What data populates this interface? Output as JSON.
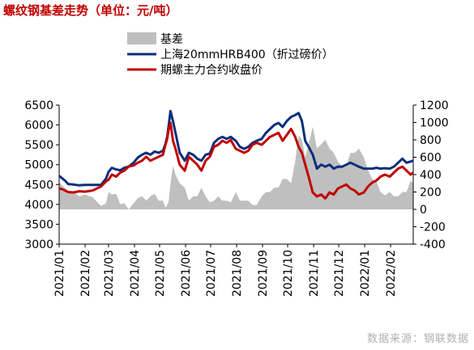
{
  "chart_data": {
    "type": "line",
    "title": "螺纹钢基差走势（单位：元/吨）",
    "x_tick_labels": [
      "2021/01",
      "2021/02",
      "2021/03",
      "2021/04",
      "2021/05",
      "2021/06",
      "2021/07",
      "2021/08",
      "2021/09",
      "2021/10",
      "2021/11",
      "2021/12",
      "2022/01",
      "2022/02"
    ],
    "left_axis": {
      "ylim": [
        3000,
        6500
      ],
      "ticks": [
        "3000",
        "3500",
        "4000",
        "4500",
        "5000",
        "5500",
        "6000",
        "6500"
      ]
    },
    "right_axis": {
      "ylim": [
        -400,
        1200
      ],
      "ticks": [
        "-400",
        "-200",
        "0",
        "200",
        "400",
        "600",
        "800",
        "1000",
        "1200"
      ]
    },
    "x_range": [
      "2021-01-01",
      "2022-02-28"
    ],
    "legend": [
      {
        "name": "基差",
        "color": "#bfbfbf",
        "kind": "area",
        "axis": "right"
      },
      {
        "name": "上海20mmHRB400（折过磅价）",
        "color": "#0b2e7a",
        "kind": "line",
        "axis": "left"
      },
      {
        "name": "期螺主力合约收盘价",
        "color": "#c00000",
        "kind": "line",
        "axis": "left"
      }
    ],
    "series": [
      {
        "name": "上海20mmHRB400（折过磅价）",
        "x": [
          "2021-01-01",
          "2021-01-05",
          "2021-01-08",
          "2021-01-12",
          "2021-01-18",
          "2021-01-25",
          "2021-02-01",
          "2021-02-10",
          "2021-02-20",
          "2021-02-26",
          "2021-03-01",
          "2021-03-05",
          "2021-03-10",
          "2021-03-15",
          "2021-03-20",
          "2021-03-25",
          "2021-03-31",
          "2021-04-05",
          "2021-04-10",
          "2021-04-15",
          "2021-04-20",
          "2021-04-25",
          "2021-04-30",
          "2021-05-05",
          "2021-05-08",
          "2021-05-10",
          "2021-05-12",
          "2021-05-14",
          "2021-05-17",
          "2021-05-20",
          "2021-05-25",
          "2021-05-31",
          "2021-06-05",
          "2021-06-10",
          "2021-06-15",
          "2021-06-20",
          "2021-06-25",
          "2021-06-30",
          "2021-07-05",
          "2021-07-10",
          "2021-07-15",
          "2021-07-20",
          "2021-07-25",
          "2021-07-31",
          "2021-08-05",
          "2021-08-10",
          "2021-08-15",
          "2021-08-20",
          "2021-08-25",
          "2021-08-31",
          "2021-09-05",
          "2021-09-10",
          "2021-09-15",
          "2021-09-20",
          "2021-09-25",
          "2021-09-30",
          "2021-10-05",
          "2021-10-10",
          "2021-10-14",
          "2021-10-18",
          "2021-10-22",
          "2021-10-26",
          "2021-10-31",
          "2021-11-05",
          "2021-11-10",
          "2021-11-15",
          "2021-11-20",
          "2021-11-25",
          "2021-11-30",
          "2021-12-05",
          "2021-12-10",
          "2021-12-15",
          "2021-12-20",
          "2021-12-25",
          "2021-12-31",
          "2022-01-05",
          "2022-01-10",
          "2022-01-15",
          "2022-01-20",
          "2022-01-25",
          "2022-01-31",
          "2022-02-05",
          "2022-02-10",
          "2022-02-15",
          "2022-02-20",
          "2022-02-25",
          "2022-02-28"
        ],
        "values": [
          4720,
          4650,
          4600,
          4510,
          4500,
          4480,
          4490,
          4490,
          4490,
          4650,
          4820,
          4920,
          4880,
          4860,
          4920,
          4950,
          5050,
          5180,
          5250,
          5300,
          5250,
          5330,
          5300,
          5350,
          5520,
          5700,
          6000,
          6350,
          6100,
          5800,
          5300,
          5100,
          5300,
          5250,
          5150,
          5100,
          5250,
          5280,
          5550,
          5650,
          5700,
          5650,
          5700,
          5600,
          5450,
          5400,
          5450,
          5550,
          5600,
          5650,
          5800,
          5900,
          6000,
          6050,
          5950,
          6100,
          6200,
          6250,
          6300,
          6100,
          5600,
          5450,
          5250,
          4900,
          5000,
          4950,
          5000,
          4900,
          4950,
          4950,
          5000,
          5050,
          5000,
          4950,
          4900,
          4900,
          4900,
          4920,
          4900,
          4910,
          4900,
          4950,
          5050,
          5150,
          5050,
          5080,
          5100
        ]
      },
      {
        "name": "期螺主力合约收盘价",
        "x": [
          "2021-01-01",
          "2021-01-05",
          "2021-01-08",
          "2021-01-12",
          "2021-01-18",
          "2021-01-25",
          "2021-02-01",
          "2021-02-10",
          "2021-02-20",
          "2021-02-26",
          "2021-03-01",
          "2021-03-05",
          "2021-03-10",
          "2021-03-15",
          "2021-03-20",
          "2021-03-25",
          "2021-03-31",
          "2021-04-05",
          "2021-04-10",
          "2021-04-15",
          "2021-04-20",
          "2021-04-25",
          "2021-04-30",
          "2021-05-05",
          "2021-05-08",
          "2021-05-10",
          "2021-05-12",
          "2021-05-14",
          "2021-05-17",
          "2021-05-20",
          "2021-05-25",
          "2021-05-31",
          "2021-06-05",
          "2021-06-10",
          "2021-06-15",
          "2021-06-20",
          "2021-06-25",
          "2021-06-30",
          "2021-07-05",
          "2021-07-10",
          "2021-07-15",
          "2021-07-20",
          "2021-07-25",
          "2021-07-31",
          "2021-08-05",
          "2021-08-10",
          "2021-08-15",
          "2021-08-20",
          "2021-08-25",
          "2021-08-31",
          "2021-09-05",
          "2021-09-10",
          "2021-09-15",
          "2021-09-20",
          "2021-09-25",
          "2021-09-30",
          "2021-10-05",
          "2021-10-10",
          "2021-10-14",
          "2021-10-18",
          "2021-10-22",
          "2021-10-26",
          "2021-10-31",
          "2021-11-05",
          "2021-11-10",
          "2021-11-15",
          "2021-11-20",
          "2021-11-25",
          "2021-11-30",
          "2021-12-05",
          "2021-12-10",
          "2021-12-15",
          "2021-12-20",
          "2021-12-25",
          "2021-12-31",
          "2022-01-05",
          "2022-01-10",
          "2022-01-15",
          "2022-01-20",
          "2022-01-25",
          "2022-01-31",
          "2022-02-05",
          "2022-02-10",
          "2022-02-15",
          "2022-02-20",
          "2022-02-25",
          "2022-02-28"
        ],
        "values": [
          4400,
          4380,
          4350,
          4310,
          4300,
          4330,
          4320,
          4350,
          4450,
          4580,
          4620,
          4750,
          4700,
          4800,
          4850,
          4950,
          4980,
          5050,
          5100,
          5200,
          5100,
          5150,
          5200,
          5250,
          5500,
          5650,
          5900,
          6050,
          5600,
          5400,
          5000,
          4850,
          5200,
          5100,
          5000,
          4850,
          5100,
          5200,
          5450,
          5500,
          5600,
          5550,
          5620,
          5400,
          5350,
          5300,
          5350,
          5500,
          5550,
          5500,
          5600,
          5700,
          5750,
          5800,
          5600,
          5750,
          5900,
          5700,
          5450,
          5300,
          5000,
          4700,
          4300,
          4200,
          4250,
          4150,
          4300,
          4250,
          4400,
          4450,
          4500,
          4400,
          4350,
          4250,
          4300,
          4450,
          4550,
          4600,
          4700,
          4750,
          4700,
          4800,
          4900,
          4950,
          4850,
          4750,
          4800
        ]
      },
      {
        "name": "基差",
        "x": [
          "2021-01-01",
          "2021-01-05",
          "2021-01-08",
          "2021-01-12",
          "2021-01-18",
          "2021-01-25",
          "2021-02-01",
          "2021-02-10",
          "2021-02-20",
          "2021-02-26",
          "2021-03-01",
          "2021-03-05",
          "2021-03-10",
          "2021-03-15",
          "2021-03-20",
          "2021-03-25",
          "2021-03-31",
          "2021-04-05",
          "2021-04-10",
          "2021-04-15",
          "2021-04-20",
          "2021-04-25",
          "2021-04-30",
          "2021-05-05",
          "2021-05-08",
          "2021-05-10",
          "2021-05-12",
          "2021-05-14",
          "2021-05-17",
          "2021-05-20",
          "2021-05-25",
          "2021-05-31",
          "2021-06-05",
          "2021-06-10",
          "2021-06-15",
          "2021-06-20",
          "2021-06-25",
          "2021-06-30",
          "2021-07-05",
          "2021-07-10",
          "2021-07-15",
          "2021-07-20",
          "2021-07-25",
          "2021-07-31",
          "2021-08-05",
          "2021-08-10",
          "2021-08-15",
          "2021-08-20",
          "2021-08-25",
          "2021-08-31",
          "2021-09-05",
          "2021-09-10",
          "2021-09-15",
          "2021-09-20",
          "2021-09-25",
          "2021-09-30",
          "2021-10-05",
          "2021-10-10",
          "2021-10-14",
          "2021-10-18",
          "2021-10-22",
          "2021-10-26",
          "2021-10-31",
          "2021-11-05",
          "2021-11-10",
          "2021-11-15",
          "2021-11-20",
          "2021-11-25",
          "2021-11-30",
          "2021-12-05",
          "2021-12-10",
          "2021-12-15",
          "2021-12-20",
          "2021-12-25",
          "2021-12-31",
          "2022-01-05",
          "2022-01-10",
          "2022-01-15",
          "2022-01-20",
          "2022-01-25",
          "2022-01-31",
          "2022-02-05",
          "2022-02-10",
          "2022-02-15",
          "2022-02-20",
          "2022-02-25",
          "2022-02-28"
        ],
        "values": [
          320,
          270,
          250,
          200,
          200,
          150,
          170,
          140,
          40,
          70,
          200,
          170,
          180,
          60,
          70,
          0,
          70,
          130,
          150,
          100,
          150,
          180,
          100,
          100,
          20,
          50,
          100,
          300,
          500,
          400,
          300,
          250,
          100,
          150,
          150,
          250,
          150,
          80,
          100,
          150,
          100,
          100,
          80,
          200,
          100,
          100,
          100,
          50,
          50,
          150,
          200,
          200,
          250,
          250,
          350,
          350,
          300,
          550,
          850,
          800,
          600,
          750,
          950,
          700,
          750,
          800,
          700,
          650,
          550,
          500,
          500,
          650,
          650,
          700,
          600,
          450,
          350,
          320,
          200,
          160,
          200,
          150,
          150,
          200,
          200,
          330,
          300
        ]
      }
    ]
  },
  "source_note": "数据来源：钢联数据"
}
